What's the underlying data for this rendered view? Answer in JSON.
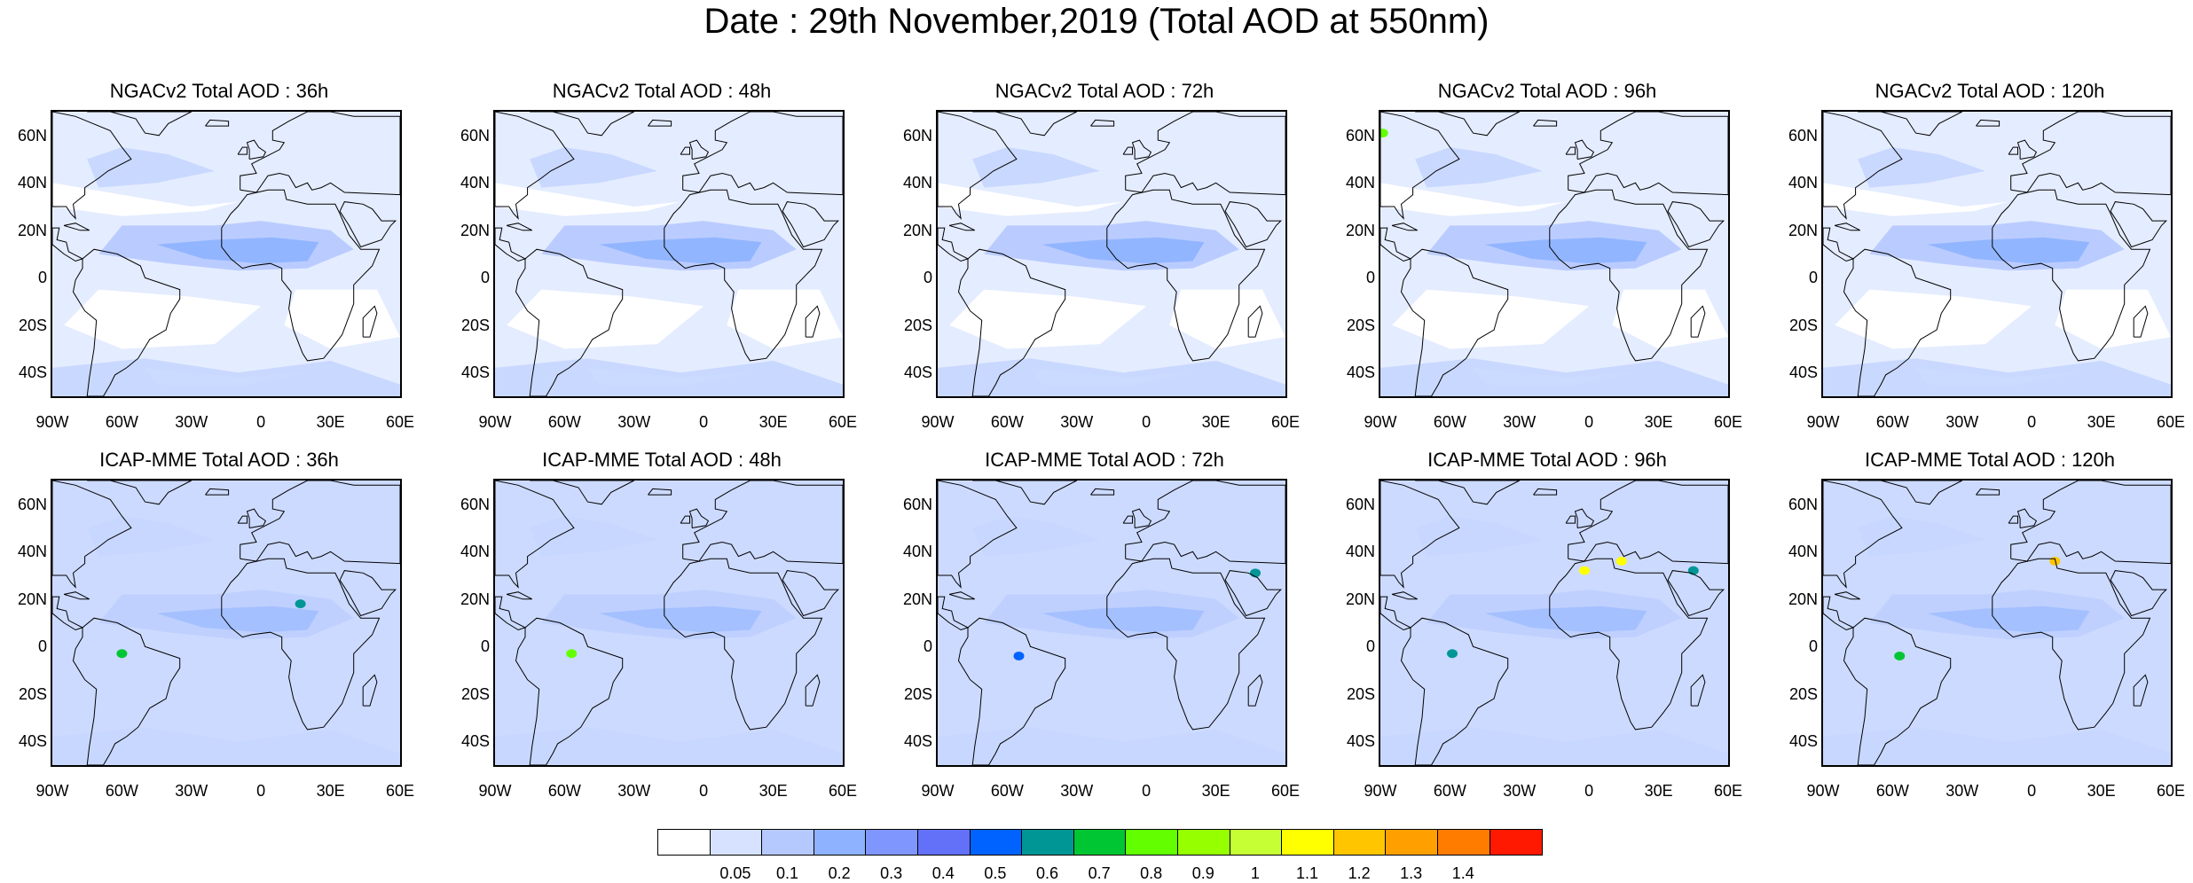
{
  "title": "Date : 29th November,2019 (Total AOD at 550nm)",
  "lat_labels": [
    "60N",
    "40N",
    "20N",
    "0",
    "20S",
    "40S"
  ],
  "lat_values": [
    60,
    40,
    20,
    0,
    -20,
    -40
  ],
  "lon_labels": [
    "90W",
    "60W",
    "30W",
    "0",
    "30E",
    "60E"
  ],
  "lon_values": [
    -90,
    -60,
    -30,
    0,
    30,
    60
  ],
  "map_extent": {
    "lon": [
      -90,
      60
    ],
    "lat": [
      -50,
      70
    ]
  },
  "panels": [
    {
      "title": "NGACv2 Total AOD : 36h",
      "model": "NGACv2",
      "lead": 36,
      "hotspots": []
    },
    {
      "title": "NGACv2 Total AOD : 48h",
      "model": "NGACv2",
      "lead": 48,
      "hotspots": []
    },
    {
      "title": "NGACv2 Total AOD : 72h",
      "model": "NGACv2",
      "lead": 72,
      "hotspots": []
    },
    {
      "title": "NGACv2 Total AOD : 96h",
      "model": "NGACv2",
      "lead": 96,
      "hotspots": [
        {
          "lon": -89,
          "lat": 61,
          "aod": 0.8
        }
      ]
    },
    {
      "title": "NGACv2 Total AOD : 120h",
      "model": "NGACv2",
      "lead": 120,
      "hotspots": []
    },
    {
      "title": "ICAP-MME Total AOD : 36h",
      "model": "ICAP-MME",
      "lead": 36,
      "hotspots": [
        {
          "lon": -60,
          "lat": -3,
          "aod": 0.7
        },
        {
          "lon": 17,
          "lat": 18,
          "aod": 0.6
        }
      ]
    },
    {
      "title": "ICAP-MME Total AOD : 48h",
      "model": "ICAP-MME",
      "lead": 48,
      "hotspots": [
        {
          "lon": -57,
          "lat": -3,
          "aod": 0.8
        }
      ]
    },
    {
      "title": "ICAP-MME Total AOD : 72h",
      "model": "ICAP-MME",
      "lead": 72,
      "hotspots": [
        {
          "lon": 47,
          "lat": 31,
          "aod": 0.6
        },
        {
          "lon": -55,
          "lat": -4,
          "aod": 0.5
        }
      ]
    },
    {
      "title": "ICAP-MME Total AOD : 96h",
      "model": "ICAP-MME",
      "lead": 96,
      "hotspots": [
        {
          "lon": -2,
          "lat": 32,
          "aod": 1.1
        },
        {
          "lon": 14,
          "lat": 36,
          "aod": 1.1
        },
        {
          "lon": 45,
          "lat": 32,
          "aod": 0.6
        },
        {
          "lon": -59,
          "lat": -3,
          "aod": 0.6
        }
      ]
    },
    {
      "title": "ICAP-MME Total AOD : 120h",
      "model": "ICAP-MME",
      "lead": 120,
      "hotspots": [
        {
          "lon": 10,
          "lat": 36,
          "aod": 1.2
        },
        {
          "lon": -57,
          "lat": -4,
          "aod": 0.7
        }
      ]
    }
  ],
  "colorbar": {
    "colors": [
      "#ffffff",
      "#d6e2ff",
      "#b5c9ff",
      "#8eb2ff",
      "#7f96ff",
      "#6370f8",
      "#0063ff",
      "#009696",
      "#00c633",
      "#63ff00",
      "#96ff00",
      "#c6ff33",
      "#ffff00",
      "#ffc600",
      "#ffa000",
      "#ff7c00",
      "#ff1900"
    ],
    "labels": [
      "0.05",
      "0.1",
      "0.2",
      "0.3",
      "0.4",
      "0.5",
      "0.6",
      "0.7",
      "0.8",
      "0.9",
      "1",
      "1.1",
      "1.2",
      "1.3",
      "1.4"
    ]
  }
}
